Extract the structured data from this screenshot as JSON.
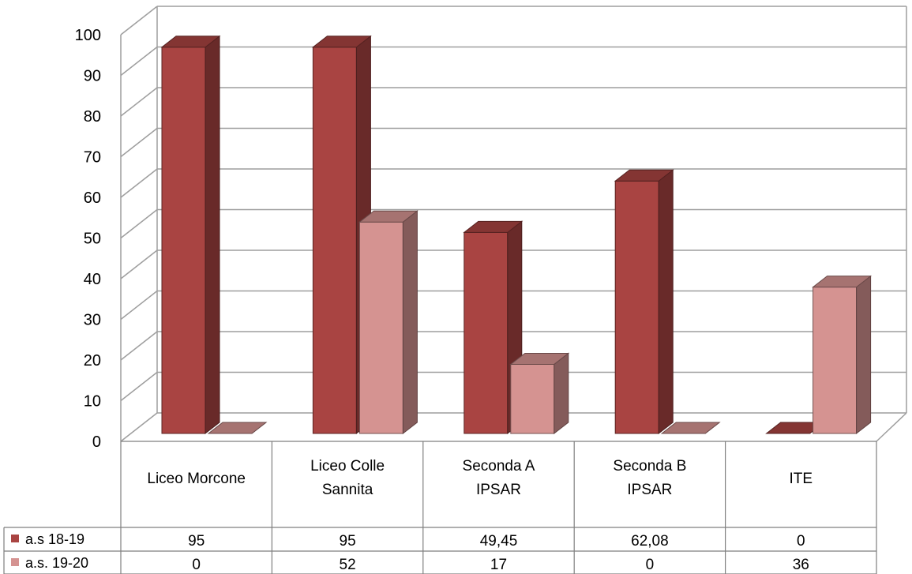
{
  "chart_data": {
    "type": "bar",
    "categories": [
      "Liceo Morcone",
      "Liceo Colle Sannita",
      "Seconda A IPSAR",
      "Seconda B IPSAR",
      "ITE"
    ],
    "category_lines": [
      [
        "Liceo Morcone"
      ],
      [
        "Liceo Colle",
        "Sannita"
      ],
      [
        "Seconda A",
        "IPSAR"
      ],
      [
        "Seconda B",
        "IPSAR"
      ],
      [
        "ITE"
      ]
    ],
    "series": [
      {
        "name": "a.s 18-19",
        "values": [
          95,
          95,
          49.45,
          62.08,
          0
        ],
        "display_values": [
          "95",
          "95",
          "49,45",
          "62,08",
          "0"
        ],
        "color": "#A94442"
      },
      {
        "name": "a.s. 19-20",
        "values": [
          0,
          52,
          17,
          0,
          36
        ],
        "display_values": [
          "0",
          "52",
          "17",
          "0",
          "36"
        ],
        "color": "#D59391"
      }
    ],
    "ylim": [
      0,
      100
    ],
    "yticks": [
      0,
      10,
      20,
      30,
      40,
      50,
      60,
      70,
      80,
      90,
      100
    ],
    "grid": true,
    "three_d": true,
    "legend": "data-table-left"
  }
}
